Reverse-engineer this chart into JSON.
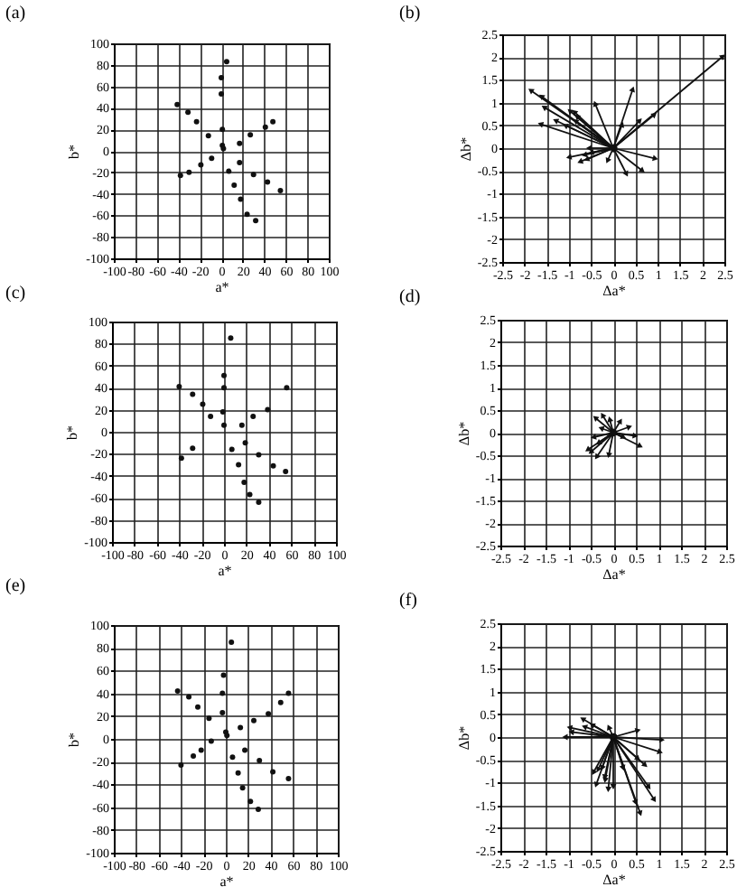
{
  "chart_data": [
    {
      "type": "scatter",
      "title": "(a)",
      "xlabel": "a*",
      "ylabel": "b*",
      "color": "#111111",
      "grid": true,
      "xlim": [
        -100,
        100
      ],
      "ylim": [
        -100,
        100
      ],
      "xticks": [
        -100,
        -80,
        -60,
        -40,
        -20,
        0,
        20,
        40,
        60,
        80,
        100
      ],
      "yticks": [
        -100,
        -80,
        -60,
        -40,
        -20,
        0,
        20,
        40,
        60,
        80,
        100
      ],
      "x": [
        5,
        0,
        0,
        -41,
        -31,
        -23,
        1,
        -12,
        17,
        27,
        41,
        48,
        1,
        2,
        -9,
        -19,
        17,
        -38,
        -30,
        7,
        30,
        12,
        43,
        55,
        18,
        24,
        32
      ],
      "values": [
        83,
        68,
        53,
        43,
        36,
        27,
        20,
        14,
        7,
        15,
        22,
        27,
        5,
        2,
        -7,
        -13,
        -11,
        -23,
        -20,
        -19,
        -22,
        -32,
        -29,
        -37,
        -45,
        -59,
        -65
      ]
    },
    {
      "type": "line",
      "title": "(b)",
      "xlabel": "Δa*",
      "ylabel": "Δb*",
      "color": "#111111",
      "grid": true,
      "marker": "triangle",
      "xlim": [
        -2.5,
        2.5
      ],
      "ylim": [
        -2.5,
        2.5
      ],
      "xticks": [
        -2.5,
        -2,
        -1.5,
        -1,
        -0.5,
        0,
        0.5,
        1,
        1.5,
        2,
        2.5
      ],
      "yticks": [
        -2.5,
        -2,
        -1.5,
        -1,
        -0.5,
        0,
        0.5,
        1,
        1.5,
        2,
        2.5
      ],
      "series": [
        {
          "x": [
            0,
            2.47
          ],
          "values": [
            0,
            2.02
          ]
        },
        {
          "x": [
            0,
            -1.86
          ],
          "values": [
            0,
            1.27
          ]
        },
        {
          "x": [
            0,
            -1.62
          ],
          "values": [
            0,
            1.14
          ]
        },
        {
          "x": [
            0,
            -1.56
          ],
          "values": [
            0,
            0.9
          ]
        },
        {
          "x": [
            0,
            -1.64
          ],
          "values": [
            0,
            0.53
          ]
        },
        {
          "x": [
            0,
            -0.98
          ],
          "values": [
            0,
            0.82
          ]
        },
        {
          "x": [
            0,
            -0.88
          ],
          "values": [
            0,
            0.8
          ]
        },
        {
          "x": [
            0,
            -0.82
          ],
          "values": [
            0,
            0.7
          ]
        },
        {
          "x": [
            0,
            -0.85
          ],
          "values": [
            0,
            0.6
          ]
        },
        {
          "x": [
            0,
            -1.3
          ],
          "values": [
            0,
            0.61
          ]
        },
        {
          "x": [
            0,
            -1.08
          ],
          "values": [
            0,
            0.5
          ]
        },
        {
          "x": [
            0,
            -0.41
          ],
          "values": [
            0,
            0.98
          ]
        },
        {
          "x": [
            0,
            0.44
          ],
          "values": [
            0,
            1.3
          ]
        },
        {
          "x": [
            0,
            0.2
          ],
          "values": [
            0,
            0.52
          ]
        },
        {
          "x": [
            0,
            0.6
          ],
          "values": [
            0,
            0.61
          ]
        },
        {
          "x": [
            0,
            0.93
          ],
          "values": [
            0,
            0.74
          ]
        },
        {
          "x": [
            0,
            -1.0
          ],
          "values": [
            0,
            -0.2
          ]
        },
        {
          "x": [
            0,
            -0.55
          ],
          "values": [
            0,
            0
          ]
        },
        {
          "x": [
            0,
            -0.5
          ],
          "values": [
            0,
            -0.1
          ]
        },
        {
          "x": [
            0,
            -0.65
          ],
          "values": [
            0,
            -0.15
          ]
        },
        {
          "x": [
            0,
            -0.6
          ],
          "values": [
            0,
            -0.25
          ]
        },
        {
          "x": [
            0,
            -0.75
          ],
          "values": [
            0,
            -0.3
          ]
        },
        {
          "x": [
            0,
            -0.13
          ],
          "values": [
            0,
            -0.28
          ]
        },
        {
          "x": [
            0,
            0.3
          ],
          "values": [
            0,
            -0.57
          ]
        },
        {
          "x": [
            0,
            0.95
          ],
          "values": [
            0,
            -0.23
          ]
        },
        {
          "x": [
            0,
            0.66
          ],
          "values": [
            0,
            -0.5
          ]
        }
      ]
    },
    {
      "type": "scatter",
      "title": "(c)",
      "xlabel": "a*",
      "ylabel": "b*",
      "color": "#111111",
      "grid": true,
      "xlim": [
        -100,
        100
      ],
      "ylim": [
        -100,
        100
      ],
      "xticks": [
        -100,
        -80,
        -60,
        -40,
        -20,
        0,
        20,
        40,
        60,
        80,
        100
      ],
      "yticks": [
        -100,
        -80,
        -60,
        -40,
        -20,
        0,
        20,
        40,
        60,
        80,
        100
      ],
      "x": [
        6,
        0,
        0,
        -40,
        -28,
        -19,
        -12,
        -1,
        0,
        16,
        26,
        39,
        56,
        -28,
        -38,
        7,
        19,
        31,
        13,
        44,
        55,
        18,
        23,
        31
      ],
      "values": [
        85,
        51,
        40,
        41,
        34,
        25,
        14,
        18,
        6,
        6,
        14,
        20,
        40,
        -15,
        -24,
        -16,
        -10,
        -21,
        -30,
        -31,
        -36,
        -46,
        -57,
        -64
      ]
    },
    {
      "type": "line",
      "title": "(d)",
      "xlabel": "Δa*",
      "ylabel": "Δb*",
      "color": "#111111",
      "grid": true,
      "marker": "triangle",
      "xlim": [
        -2.5,
        2.5
      ],
      "ylim": [
        -2.5,
        2.5
      ],
      "xticks": [
        -2.5,
        -2,
        -1.5,
        -1,
        -0.5,
        0,
        0.5,
        1,
        1.5,
        2,
        2.5
      ],
      "yticks": [
        -2.5,
        -2,
        -1.5,
        -1,
        -0.5,
        0,
        0.5,
        1,
        1.5,
        2,
        2.5
      ],
      "series": [
        {
          "x": [
            0,
            -0.24
          ],
          "values": [
            0,
            0.39
          ]
        },
        {
          "x": [
            0,
            -0.4
          ],
          "values": [
            0,
            0.33
          ]
        },
        {
          "x": [
            0,
            -0.08
          ],
          "values": [
            0,
            0.3
          ]
        },
        {
          "x": [
            0,
            0.16
          ],
          "values": [
            0,
            0.26
          ]
        },
        {
          "x": [
            0,
            0.36
          ],
          "values": [
            0,
            0.13
          ]
        },
        {
          "x": [
            0,
            0.49
          ],
          "values": [
            0,
            -0.07
          ]
        },
        {
          "x": [
            0,
            0.6
          ],
          "values": [
            0,
            -0.3
          ]
        },
        {
          "x": [
            0,
            -0.5
          ],
          "values": [
            0,
            -0.43
          ]
        },
        {
          "x": [
            0,
            -0.57
          ],
          "values": [
            0,
            -0.38
          ]
        },
        {
          "x": [
            0,
            -0.37
          ],
          "values": [
            0,
            -0.54
          ]
        },
        {
          "x": [
            0,
            -0.1
          ],
          "values": [
            0,
            -0.5
          ]
        },
        {
          "x": [
            0,
            -0.33
          ],
          "values": [
            0,
            -0.23
          ]
        },
        {
          "x": [
            0,
            -0.44
          ],
          "values": [
            0,
            -0.1
          ]
        },
        {
          "x": [
            0,
            0.23
          ],
          "values": [
            0,
            -0.1
          ]
        },
        {
          "x": [
            0,
            -0.27
          ],
          "values": [
            0,
            0.1
          ]
        }
      ]
    },
    {
      "type": "scatter",
      "title": "(e)",
      "xlabel": "a*",
      "ylabel": "b*",
      "color": "#111111",
      "grid": true,
      "xlim": [
        -100,
        100
      ],
      "ylim": [
        -100,
        100
      ],
      "xticks": [
        -100,
        -80,
        -60,
        -40,
        -20,
        0,
        20,
        40,
        60,
        80,
        100
      ],
      "yticks": [
        -100,
        -80,
        -60,
        -40,
        -20,
        0,
        20,
        40,
        60,
        80,
        100
      ],
      "x": [
        5,
        -2,
        -3,
        -43,
        -33,
        -25,
        -15,
        -3,
        0,
        1,
        13,
        25,
        38,
        49,
        56,
        -13,
        -22,
        -29,
        -40,
        6,
        17,
        30,
        11,
        42,
        56,
        15,
        22,
        29
      ],
      "values": [
        85,
        56,
        40,
        42,
        37,
        28,
        18,
        23,
        6,
        3,
        10,
        16,
        22,
        32,
        40,
        -2,
        -10,
        -15,
        -23,
        -16,
        -10,
        -19,
        -30,
        -29,
        -35,
        -43,
        -55,
        -62
      ]
    },
    {
      "type": "line",
      "title": "(f)",
      "xlabel": "Δa*",
      "ylabel": "Δb*",
      "color": "#111111",
      "grid": true,
      "marker": "triangle",
      "xlim": [
        -2.5,
        2.5
      ],
      "ylim": [
        -2.5,
        2.5
      ],
      "xticks": [
        -2.5,
        -2,
        -1.5,
        -1,
        -0.5,
        0,
        0.5,
        1,
        1.5,
        2,
        2.5
      ],
      "yticks": [
        -2.5,
        -2,
        -1.5,
        -1,
        -0.5,
        0,
        0.5,
        1,
        1.5,
        2,
        2.5
      ],
      "series": [
        {
          "x": [
            0,
            -0.68
          ],
          "values": [
            0,
            0.4
          ]
        },
        {
          "x": [
            0,
            -0.47
          ],
          "values": [
            0,
            0.27
          ]
        },
        {
          "x": [
            0,
            -0.97
          ],
          "values": [
            0,
            0.21
          ]
        },
        {
          "x": [
            0,
            -0.93
          ],
          "values": [
            0,
            0.11
          ]
        },
        {
          "x": [
            0,
            -1.07
          ],
          "values": [
            0,
            0
          ]
        },
        {
          "x": [
            0,
            -0.64
          ],
          "values": [
            0,
            0.23
          ]
        },
        {
          "x": [
            0,
            -0.1
          ],
          "values": [
            0,
            0.22
          ]
        },
        {
          "x": [
            0,
            0.55
          ],
          "values": [
            0,
            0.15
          ]
        },
        {
          "x": [
            0,
            1.08
          ],
          "values": [
            0,
            -0.06
          ]
        },
        {
          "x": [
            0,
            1.04
          ],
          "values": [
            0,
            -0.33
          ]
        },
        {
          "x": [
            0,
            0.55
          ],
          "values": [
            0,
            -0.48
          ]
        },
        {
          "x": [
            0,
            0.71
          ],
          "values": [
            0,
            -0.62
          ]
        },
        {
          "x": [
            0,
            0.79
          ],
          "values": [
            0,
            -1.1
          ]
        },
        {
          "x": [
            0,
            0.91
          ],
          "values": [
            0,
            -1.38
          ]
        },
        {
          "x": [
            0,
            0.5
          ],
          "values": [
            0,
            -1.44
          ]
        },
        {
          "x": [
            0,
            0.6
          ],
          "values": [
            0,
            -1.68
          ]
        },
        {
          "x": [
            0,
            0.22
          ],
          "values": [
            0,
            -0.68
          ]
        },
        {
          "x": [
            0,
            -0.18
          ],
          "values": [
            0,
            -0.95
          ]
        },
        {
          "x": [
            0,
            -0.38
          ],
          "values": [
            0,
            -1.05
          ]
        },
        {
          "x": [
            0,
            -0.44
          ],
          "values": [
            0,
            -0.78
          ]
        },
        {
          "x": [
            0,
            -0.34
          ],
          "values": [
            0,
            -0.72
          ]
        },
        {
          "x": [
            0,
            -0.11
          ],
          "values": [
            0,
            -1.15
          ]
        },
        {
          "x": [
            0,
            0
          ],
          "values": [
            0,
            -1.09
          ]
        },
        {
          "x": [
            0,
            -0.19
          ],
          "values": [
            0,
            -0.88
          ]
        },
        {
          "x": [
            0,
            -0.25
          ],
          "values": [
            0,
            -0.68
          ]
        }
      ]
    }
  ]
}
